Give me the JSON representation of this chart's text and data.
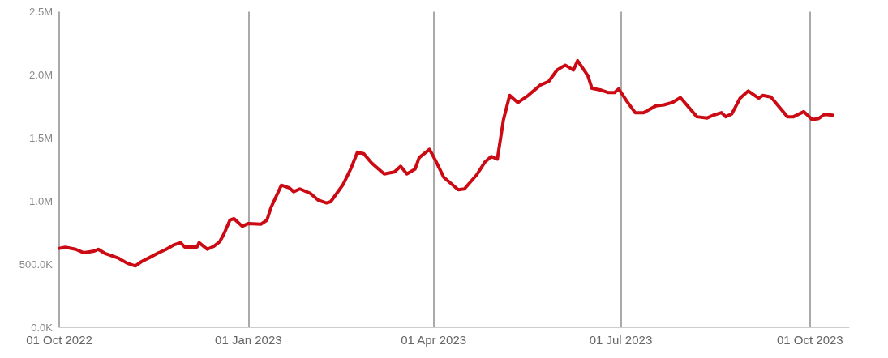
{
  "chart_data": {
    "type": "line",
    "x": [
      "2022-10-01",
      "2022-10-04",
      "2022-10-09",
      "2022-10-13",
      "2022-10-18",
      "2022-10-20",
      "2022-10-23",
      "2022-10-30",
      "2022-11-03",
      "2022-11-07",
      "2022-11-10",
      "2022-11-14",
      "2022-11-18",
      "2022-11-22",
      "2022-11-26",
      "2022-11-29",
      "2022-12-01",
      "2022-12-07",
      "2022-12-08",
      "2022-12-12",
      "2022-12-15",
      "2022-12-18",
      "2022-12-20",
      "2022-12-23",
      "2022-12-25",
      "2022-12-29",
      "2023-01-01",
      "2023-01-07",
      "2023-01-10",
      "2023-01-12",
      "2023-01-17",
      "2023-01-21",
      "2023-01-23",
      "2023-01-26",
      "2023-01-31",
      "2023-02-04",
      "2023-02-08",
      "2023-02-10",
      "2023-02-13",
      "2023-02-16",
      "2023-02-20",
      "2023-02-23",
      "2023-02-26",
      "2023-03-02",
      "2023-03-08",
      "2023-03-13",
      "2023-03-16",
      "2023-03-19",
      "2023-03-23",
      "2023-03-25",
      "2023-03-30",
      "2023-04-02",
      "2023-04-06",
      "2023-04-13",
      "2023-04-16",
      "2023-04-22",
      "2023-04-26",
      "2023-04-29",
      "2023-05-02",
      "2023-05-05",
      "2023-05-08",
      "2023-05-12",
      "2023-05-17",
      "2023-05-23",
      "2023-05-27",
      "2023-05-31",
      "2023-06-04",
      "2023-06-08",
      "2023-06-10",
      "2023-06-15",
      "2023-06-17",
      "2023-06-21",
      "2023-06-25",
      "2023-06-28",
      "2023-06-30",
      "2023-07-04",
      "2023-07-08",
      "2023-07-12",
      "2023-07-18",
      "2023-07-22",
      "2023-07-26",
      "2023-07-30",
      "2023-08-07",
      "2023-08-12",
      "2023-08-15",
      "2023-08-19",
      "2023-08-21",
      "2023-08-24",
      "2023-08-28",
      "2023-09-01",
      "2023-09-06",
      "2023-09-08",
      "2023-09-12",
      "2023-09-16",
      "2023-09-20",
      "2023-09-23",
      "2023-09-28",
      "2023-10-02",
      "2023-10-05",
      "2023-10-08",
      "2023-10-12"
    ],
    "series": [
      {
        "color": "#cc0a14",
        "values": [
          625000,
          634000,
          618000,
          590000,
          603000,
          618000,
          587000,
          546000,
          508000,
          486000,
          520000,
          553000,
          587000,
          618000,
          654000,
          670000,
          636000,
          636000,
          670000,
          618000,
          640000,
          677000,
          737000,
          849000,
          860000,
          800000,
          822000,
          816000,
          849000,
          950000,
          1125000,
          1103000,
          1074000,
          1096000,
          1062000,
          1006000,
          985000,
          995000,
          1062000,
          1130000,
          1264000,
          1388000,
          1376000,
          1300000,
          1215000,
          1231000,
          1275000,
          1215000,
          1253000,
          1344000,
          1410000,
          1320000,
          1187000,
          1090000,
          1096000,
          1208000,
          1310000,
          1353000,
          1332000,
          1646000,
          1837000,
          1780000,
          1837000,
          1920000,
          1948000,
          2038000,
          2077000,
          2038000,
          2112000,
          1994000,
          1893000,
          1881000,
          1859000,
          1859000,
          1888000,
          1790000,
          1700000,
          1700000,
          1753000,
          1762000,
          1780000,
          1820000,
          1668000,
          1658000,
          1680000,
          1700000,
          1668000,
          1690000,
          1815000,
          1872000,
          1815000,
          1837000,
          1825000,
          1746000,
          1668000,
          1668000,
          1708000,
          1646000,
          1652000,
          1686000,
          1680000
        ]
      }
    ],
    "xticks": [
      {
        "value": "2022-10-01",
        "label": "01 Oct 2022"
      },
      {
        "value": "2023-01-01",
        "label": "01 Jan 2023"
      },
      {
        "value": "2023-04-01",
        "label": "01 Apr 2023"
      },
      {
        "value": "2023-07-01",
        "label": "01 Jul 2023"
      },
      {
        "value": "2023-10-01",
        "label": "01 Oct 2023"
      }
    ],
    "xlim": [
      "2022-10-01",
      "2023-10-20"
    ],
    "ylim": [
      0,
      2500000
    ],
    "yticks": [
      {
        "value": 0,
        "label": "0.0K"
      },
      {
        "value": 500000,
        "label": "500.0K"
      },
      {
        "value": 1000000,
        "label": "1.0M"
      },
      {
        "value": 1500000,
        "label": "1.5M"
      },
      {
        "value": 2000000,
        "label": "2.0M"
      },
      {
        "value": 2500000,
        "label": "2.5M"
      }
    ],
    "grid": "x",
    "marker": "none",
    "line_style": "solid"
  }
}
